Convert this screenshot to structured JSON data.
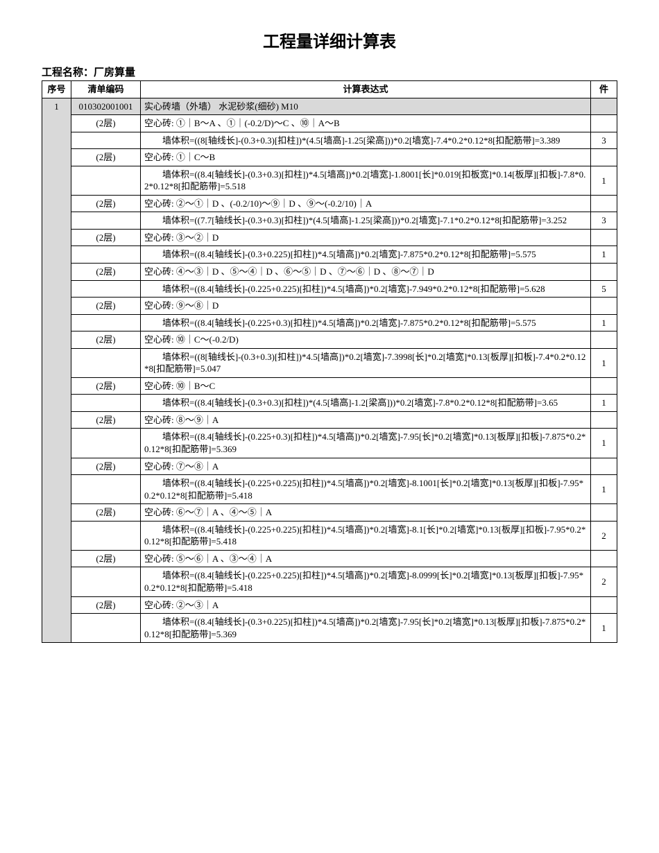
{
  "title": "工程量详细计算表",
  "project_label": "工程名称：厂房算量",
  "headers": {
    "seq": "序号",
    "code": "清单编码",
    "expr": "计算表达式",
    "qty": "件"
  },
  "group": {
    "seq": "1",
    "code": "010302001001",
    "desc": "实心砖墙（外墙）  水泥砂浆(细砂) M10"
  },
  "rows": [
    {
      "floor": "(2层)",
      "label": "空心砖: ①｜B～A 、①｜(-0.2/D)～C 、⑩｜A～B",
      "formula": "墙体积=((8[轴线长]-(0.3+0.3)[扣柱])*(4.5[墙高]-1.25[梁高]))*0.2[墙宽]-7.4*0.2*0.12*8[扣配筋带]=3.389",
      "qty": "3"
    },
    {
      "floor": "(2层)",
      "label": "空心砖: ①｜C～B",
      "formula": "墙体积=((8.4[轴线长]-(0.3+0.3)[扣柱])*4.5[墙高])*0.2[墙宽]-1.8001[长]*0.019[扣板宽]*0.14[板厚][扣板]-7.8*0.2*0.12*8[扣配筋带]=5.518",
      "qty": "1"
    },
    {
      "floor": "(2层)",
      "label": "空心砖: ②～①｜D 、(-0.2/10)～⑨｜D 、⑨～(-0.2/10)｜A",
      "formula": "墙体积=((7.7[轴线长]-(0.3+0.3)[扣柱])*(4.5[墙高]-1.25[梁高]))*0.2[墙宽]-7.1*0.2*0.12*8[扣配筋带]=3.252",
      "qty": "3"
    },
    {
      "floor": "(2层)",
      "label": "空心砖: ③～②｜D",
      "formula": "墙体积=((8.4[轴线长]-(0.3+0.225)[扣柱])*4.5[墙高])*0.2[墙宽]-7.875*0.2*0.12*8[扣配筋带]=5.575",
      "qty": "1"
    },
    {
      "floor": "(2层)",
      "label": "空心砖: ④～③｜D 、⑤～④｜D 、⑥～⑤｜D 、⑦～⑥｜D 、⑧～⑦｜D",
      "formula": "墙体积=((8.4[轴线长]-(0.225+0.225)[扣柱])*4.5[墙高])*0.2[墙宽]-7.949*0.2*0.12*8[扣配筋带]=5.628",
      "qty": "5"
    },
    {
      "floor": "(2层)",
      "label": "空心砖: ⑨～⑧｜D",
      "formula": "墙体积=((8.4[轴线长]-(0.225+0.3)[扣柱])*4.5[墙高])*0.2[墙宽]-7.875*0.2*0.12*8[扣配筋带]=5.575",
      "qty": "1"
    },
    {
      "floor": "(2层)",
      "label": "空心砖: ⑩｜C～(-0.2/D)",
      "formula": "墙体积=((8[轴线长]-(0.3+0.3)[扣柱])*4.5[墙高])*0.2[墙宽]-7.3998[长]*0.2[墙宽]*0.13[板厚][扣板]-7.4*0.2*0.12*8[扣配筋带]=5.047",
      "qty": "1"
    },
    {
      "floor": "(2层)",
      "label": "空心砖: ⑩｜B～C",
      "formula": "墙体积=((8.4[轴线长]-(0.3+0.3)[扣柱])*(4.5[墙高]-1.2[梁高]))*0.2[墙宽]-7.8*0.2*0.12*8[扣配筋带]=3.65",
      "qty": "1"
    },
    {
      "floor": "(2层)",
      "label": "空心砖: ⑧～⑨｜A",
      "formula": "墙体积=((8.4[轴线长]-(0.225+0.3)[扣柱])*4.5[墙高])*0.2[墙宽]-7.95[长]*0.2[墙宽]*0.13[板厚][扣板]-7.875*0.2*0.12*8[扣配筋带]=5.369",
      "qty": "1"
    },
    {
      "floor": "(2层)",
      "label": "空心砖: ⑦～⑧｜A",
      "formula": "墙体积=((8.4[轴线长]-(0.225+0.225)[扣柱])*4.5[墙高])*0.2[墙宽]-8.1001[长]*0.2[墙宽]*0.13[板厚][扣板]-7.95*0.2*0.12*8[扣配筋带]=5.418",
      "qty": "1"
    },
    {
      "floor": "(2层)",
      "label": "空心砖: ⑥～⑦｜A 、④～⑤｜A",
      "formula": "墙体积=((8.4[轴线长]-(0.225+0.225)[扣柱])*4.5[墙高])*0.2[墙宽]-8.1[长]*0.2[墙宽]*0.13[板厚][扣板]-7.95*0.2*0.12*8[扣配筋带]=5.418",
      "qty": "2"
    },
    {
      "floor": "(2层)",
      "label": "空心砖: ⑤～⑥｜A 、③～④｜A",
      "formula": "墙体积=((8.4[轴线长]-(0.225+0.225)[扣柱])*4.5[墙高])*0.2[墙宽]-8.0999[长]*0.2[墙宽]*0.13[板厚][扣板]-7.95*0.2*0.12*8[扣配筋带]=5.418",
      "qty": "2"
    },
    {
      "floor": "(2层)",
      "label": "空心砖: ②～③｜A",
      "formula": "墙体积=((8.4[轴线长]-(0.3+0.225)[扣柱])*4.5[墙高])*0.2[墙宽]-7.95[长]*0.2[墙宽]*0.13[板厚][扣板]-7.875*0.2*0.12*8[扣配筋带]=5.369",
      "qty": "1"
    }
  ]
}
